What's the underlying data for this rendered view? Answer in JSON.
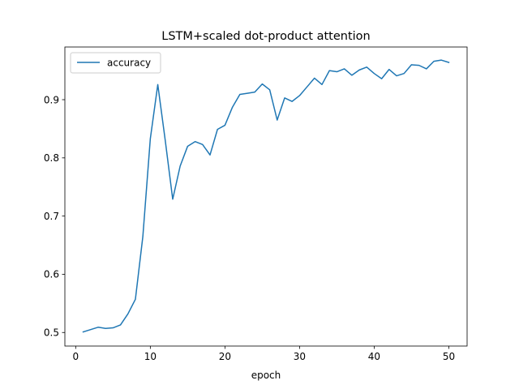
{
  "chart_data": {
    "type": "line",
    "title": "LSTM+scaled dot-product attention",
    "xlabel": "epoch",
    "ylabel": "",
    "xlim": [
      -1.45,
      52.45
    ],
    "ylim": [
      0.4767,
      0.9905
    ],
    "xticks": [
      0,
      10,
      20,
      30,
      40,
      50
    ],
    "yticks": [
      0.5,
      0.6,
      0.7,
      0.8,
      0.9
    ],
    "xtick_labels": [
      "0",
      "10",
      "20",
      "30",
      "40",
      "50"
    ],
    "ytick_labels": [
      "0.5",
      "0.6",
      "0.7",
      "0.8",
      "0.9"
    ],
    "grid": false,
    "legend": {
      "position": "top-left"
    },
    "series": [
      {
        "name": "accuracy",
        "color": "#1f77b4",
        "x": [
          1,
          2,
          3,
          4,
          5,
          6,
          7,
          8,
          9,
          10,
          11,
          12,
          13,
          14,
          15,
          16,
          17,
          18,
          19,
          20,
          21,
          22,
          23,
          24,
          25,
          26,
          27,
          28,
          29,
          30,
          31,
          32,
          33,
          34,
          35,
          36,
          37,
          38,
          39,
          40,
          41,
          42,
          43,
          44,
          45,
          46,
          47,
          48,
          49,
          50
        ],
        "y": [
          0.501,
          0.505,
          0.509,
          0.507,
          0.508,
          0.513,
          0.532,
          0.557,
          0.665,
          0.833,
          0.926,
          0.83,
          0.729,
          0.786,
          0.82,
          0.828,
          0.823,
          0.805,
          0.849,
          0.856,
          0.887,
          0.909,
          0.911,
          0.913,
          0.927,
          0.917,
          0.865,
          0.903,
          0.897,
          0.907,
          0.922,
          0.937,
          0.926,
          0.95,
          0.948,
          0.953,
          0.942,
          0.951,
          0.956,
          0.945,
          0.936,
          0.952,
          0.941,
          0.945,
          0.96,
          0.959,
          0.953,
          0.966,
          0.968,
          0.964
        ]
      }
    ]
  }
}
